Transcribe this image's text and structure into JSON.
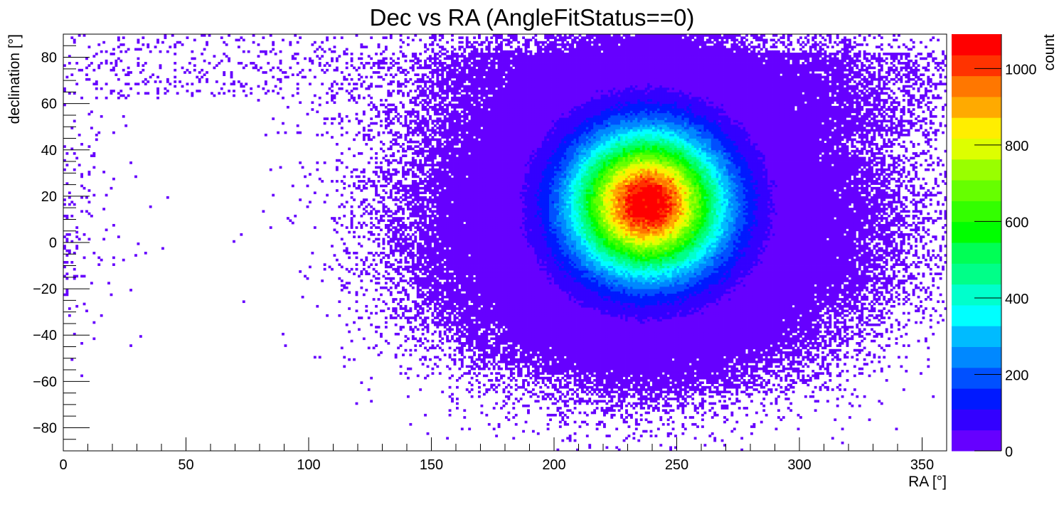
{
  "chart_data": {
    "type": "heatmap",
    "title": "Dec vs RA (AngleFitStatus==0)",
    "xlabel": "RA [°]",
    "ylabel": "declination [°]",
    "zlabel": "count",
    "xlim": [
      0,
      360
    ],
    "ylim": [
      -90,
      90
    ],
    "zlim": [
      0,
      1090
    ],
    "bin_width_deg": 1,
    "x_ticks": [
      "0",
      "50",
      "100",
      "150",
      "200",
      "250",
      "300",
      "350"
    ],
    "y_ticks": [
      "−80",
      "−60",
      "−40",
      "−20",
      "0",
      "20",
      "40",
      "60",
      "80"
    ],
    "z_ticks": [
      "0",
      "200",
      "400",
      "600",
      "800",
      "1000"
    ],
    "peak": {
      "ra": 238,
      "dec": 17,
      "count": 1090
    },
    "core_sigma_deg": {
      "ra": 20,
      "dec": 20
    },
    "occupied_region": {
      "ra_range": [
        150,
        330
      ],
      "dec_range": [
        -67,
        82
      ],
      "sparse_band_above_dec": 62
    },
    "grid": false,
    "legend": "colorbar-right",
    "palette": [
      "#6600ff",
      "#3300ff",
      "#0019ff",
      "#0050ff",
      "#0088ff",
      "#00bbff",
      "#00ffff",
      "#00ffcc",
      "#00ff88",
      "#00ff55",
      "#00ff00",
      "#33ff00",
      "#66ff00",
      "#99ff00",
      "#ddff00",
      "#ffee00",
      "#ffaa00",
      "#ff7700",
      "#ff3300",
      "#ff0000"
    ]
  }
}
